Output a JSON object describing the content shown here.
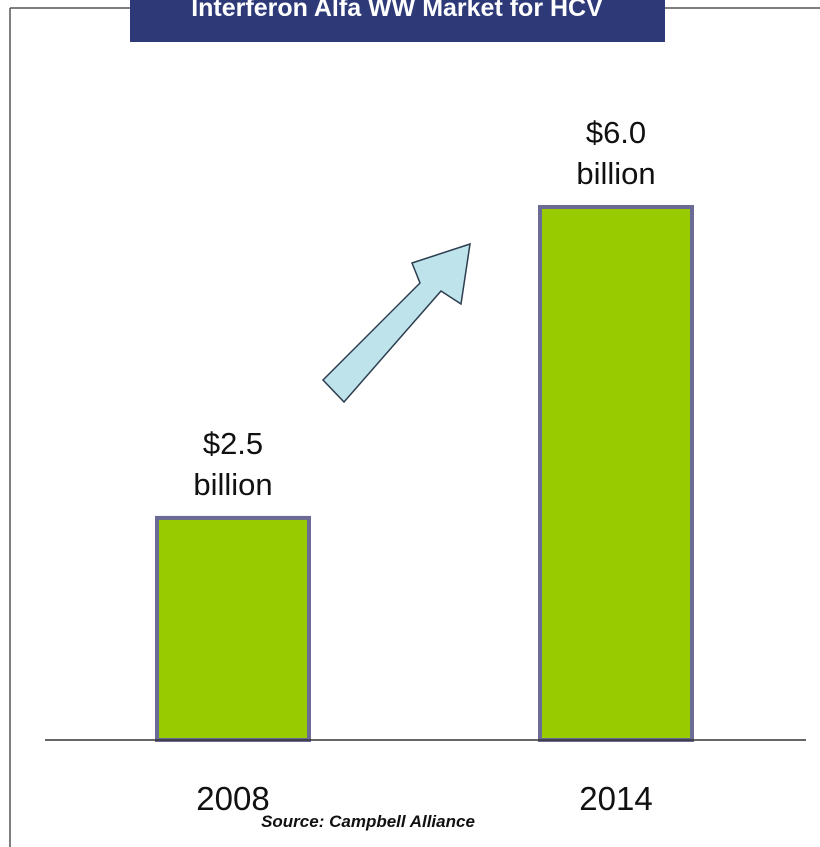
{
  "chart_data": {
    "type": "bar",
    "title": "Interferon Alfa WW Market for HCV",
    "categories": [
      "2008",
      "2014"
    ],
    "values": [
      2.5,
      6.0
    ],
    "data_labels": [
      {
        "amount": "$2.5",
        "unit": "billion"
      },
      {
        "amount": "$6.0",
        "unit": "billion"
      }
    ],
    "xlabel": "",
    "ylabel": "",
    "ylim": [
      0,
      6.5
    ],
    "grid": false,
    "legend": "none",
    "source": "Source: Campbell Alliance",
    "annotation": "upward-growth-arrow",
    "colors": {
      "bar_fill": "#99cc00",
      "bar_border": "#6b6b96",
      "title_bg": "#2e3a78",
      "title_text": "#ffffff",
      "arrow_fill": "#bfe3ea",
      "arrow_stroke": "#2c3e50",
      "axis": "#333333",
      "frame": "#555555"
    }
  }
}
